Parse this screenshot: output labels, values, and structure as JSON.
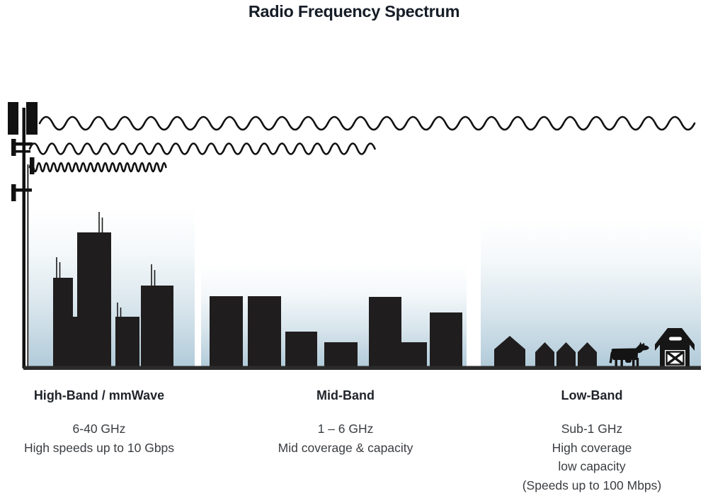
{
  "title": "Radio Frequency Spectrum",
  "bands": [
    {
      "name": "High-Band / mmWave",
      "freq": "6-40 GHz",
      "desc": [
        "High speeds up to 10 Gbps"
      ]
    },
    {
      "name": "Mid-Band",
      "freq": "1 – 6 GHz",
      "desc": [
        "Mid coverage & capacity"
      ]
    },
    {
      "name": "Low-Band",
      "freq": "Sub-1 GHz",
      "desc": [
        "High coverage",
        "low capacity",
        "(Speeds up to 100 Mbps)"
      ]
    }
  ],
  "scene": {
    "icons": [
      "cell-tower-icon",
      "long-wavelength-wave-icon",
      "medium-wavelength-wave-icon",
      "short-wavelength-wave-icon",
      "city-skyline-icon",
      "town-skyline-icon",
      "house-icon",
      "cow-icon",
      "barn-icon"
    ],
    "colors": {
      "ink": "#111111",
      "silhouette": "#201d1e",
      "ground": "#2b2b2b",
      "sky_top": "#ffffff",
      "sky_mid": "#d8e5ec",
      "sky_bottom": "#b0cad9",
      "title_text": "#161d27",
      "heading_text": "#1f242b",
      "body_text": "#3a3d41"
    }
  }
}
